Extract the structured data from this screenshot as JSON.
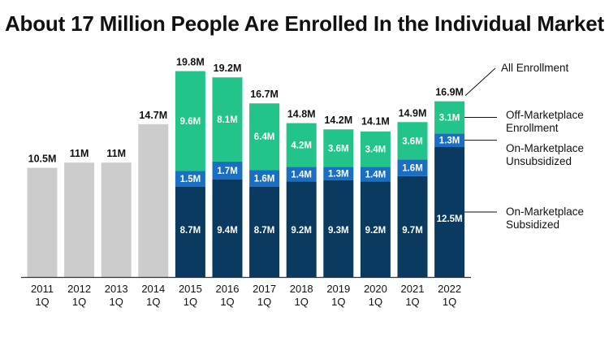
{
  "chart_data": {
    "type": "bar",
    "title": "About 17 Million People Are Enrolled In the Individual Market",
    "xlabel": "",
    "ylabel": "",
    "ylim": [
      0,
      22
    ],
    "grid": false,
    "categories": [
      [
        "2011",
        "1Q"
      ],
      [
        "2012",
        "1Q"
      ],
      [
        "2013",
        "1Q"
      ],
      [
        "2014",
        "1Q"
      ],
      [
        "2015",
        "1Q"
      ],
      [
        "2016",
        "1Q"
      ],
      [
        "2017",
        "1Q"
      ],
      [
        "2018",
        "1Q"
      ],
      [
        "2019",
        "1Q"
      ],
      [
        "2020",
        "1Q"
      ],
      [
        "2021",
        "1Q"
      ],
      [
        "2022",
        "1Q"
      ]
    ],
    "totals": [
      10.5,
      11,
      11,
      14.7,
      19.8,
      19.2,
      16.7,
      14.8,
      14.2,
      14.1,
      14.9,
      16.9
    ],
    "total_labels": [
      "10.5M",
      "11M",
      "11M",
      "14.7M",
      "19.8M",
      "19.2M",
      "16.7M",
      "14.8M",
      "14.2M",
      "14.1M",
      "14.9M",
      "16.9M"
    ],
    "series": [
      {
        "name": "On-Marketplace Subsidized",
        "legend": [
          "On-Marketplace",
          "Subsidized"
        ],
        "color": "#0b3a60",
        "label_color": "#ffffff",
        "values": [
          null,
          null,
          null,
          null,
          8.7,
          9.4,
          8.7,
          9.2,
          9.3,
          9.2,
          9.7,
          12.5
        ],
        "labels": [
          null,
          null,
          null,
          null,
          "8.7M",
          "9.4M",
          "8.7M",
          "9.2M",
          "9.3M",
          "9.2M",
          "9.7M",
          "12.5M"
        ]
      },
      {
        "name": "On-Marketplace Unsubsidized",
        "legend": [
          "On-Marketplace",
          "Unsubsidized"
        ],
        "color": "#1a6fc2",
        "label_color": "#ffffff",
        "values": [
          null,
          null,
          null,
          null,
          1.5,
          1.7,
          1.6,
          1.4,
          1.3,
          1.4,
          1.6,
          1.3
        ],
        "labels": [
          null,
          null,
          null,
          null,
          "1.5M",
          "1.7M",
          "1.6M",
          "1.4M",
          "1.3M",
          "1.4M",
          "1.6M",
          "1.3M"
        ]
      },
      {
        "name": "Off-Marketplace Enrollment",
        "legend": [
          "Off-Marketplace",
          "Enrollment"
        ],
        "color": "#23c48a",
        "label_color": "#ffffff",
        "values": [
          null,
          null,
          null,
          null,
          9.6,
          8.1,
          6.4,
          4.2,
          3.6,
          3.4,
          3.6,
          3.1
        ],
        "labels": [
          null,
          null,
          null,
          null,
          "9.6M",
          "8.1M",
          "6.4M",
          "4.2M",
          "3.6M",
          "3.4M",
          "3.6M",
          "3.1M"
        ]
      }
    ],
    "total_series": {
      "name": "All Enrollment",
      "legend": [
        "All Enrollment"
      ],
      "color": "#cccccc"
    },
    "legend_position": "right"
  }
}
